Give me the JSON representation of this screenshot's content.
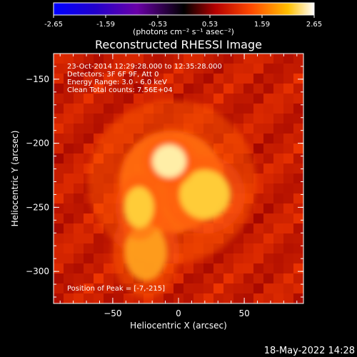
{
  "chart_data": {
    "type": "heatmap",
    "title": "Reconstructed RHESSI Image",
    "xlabel": "Heliocentric X (arcsec)",
    "ylabel": "Heliocentric Y (arcsec)",
    "xlim": [
      -95,
      95
    ],
    "ylim": [
      -325,
      -130
    ],
    "xticks": [
      -50,
      0,
      50
    ],
    "yticks": [
      -150,
      -200,
      -250,
      -300
    ],
    "colorbar": {
      "ticks": [
        "-2.65",
        "-1.59",
        "-0.53",
        "0.53",
        "1.59",
        "2.65"
      ],
      "range": [
        -2.65,
        2.65
      ]
    },
    "units_line": "(photons cm⁻² s⁻¹ asec⁻²)",
    "annotations": [
      "23-Oct-2014 12:29:28.000 to 12:35:28.000",
      "Detectors: 3F 6F 9F, Att 0",
      "Energy Range: 3.0 - 6.0 keV",
      "Clean     Total counts: 7.56E+04"
    ],
    "peak_label": "Position of Peak = [-7,-215]",
    "peak": {
      "x": -7,
      "y": -215
    },
    "sources": [
      {
        "x": -7,
        "y": -214,
        "sx": 8,
        "sy": 8,
        "amp": 1.0
      },
      {
        "x": 20,
        "y": -240,
        "sx": 12,
        "sy": 12,
        "amp": 0.8
      },
      {
        "x": -30,
        "y": -250,
        "sx": 7,
        "sy": 10,
        "amp": 0.72
      },
      {
        "x": -25,
        "y": -285,
        "sx": 10,
        "sy": 14,
        "amp": 0.55
      },
      {
        "x": -5,
        "y": -230,
        "sx": 25,
        "sy": 25,
        "amp": 0.35
      }
    ],
    "colors": {
      "background": "#000000",
      "text": "#ffffff"
    }
  },
  "timestamp": "18-May-2022 14:28"
}
